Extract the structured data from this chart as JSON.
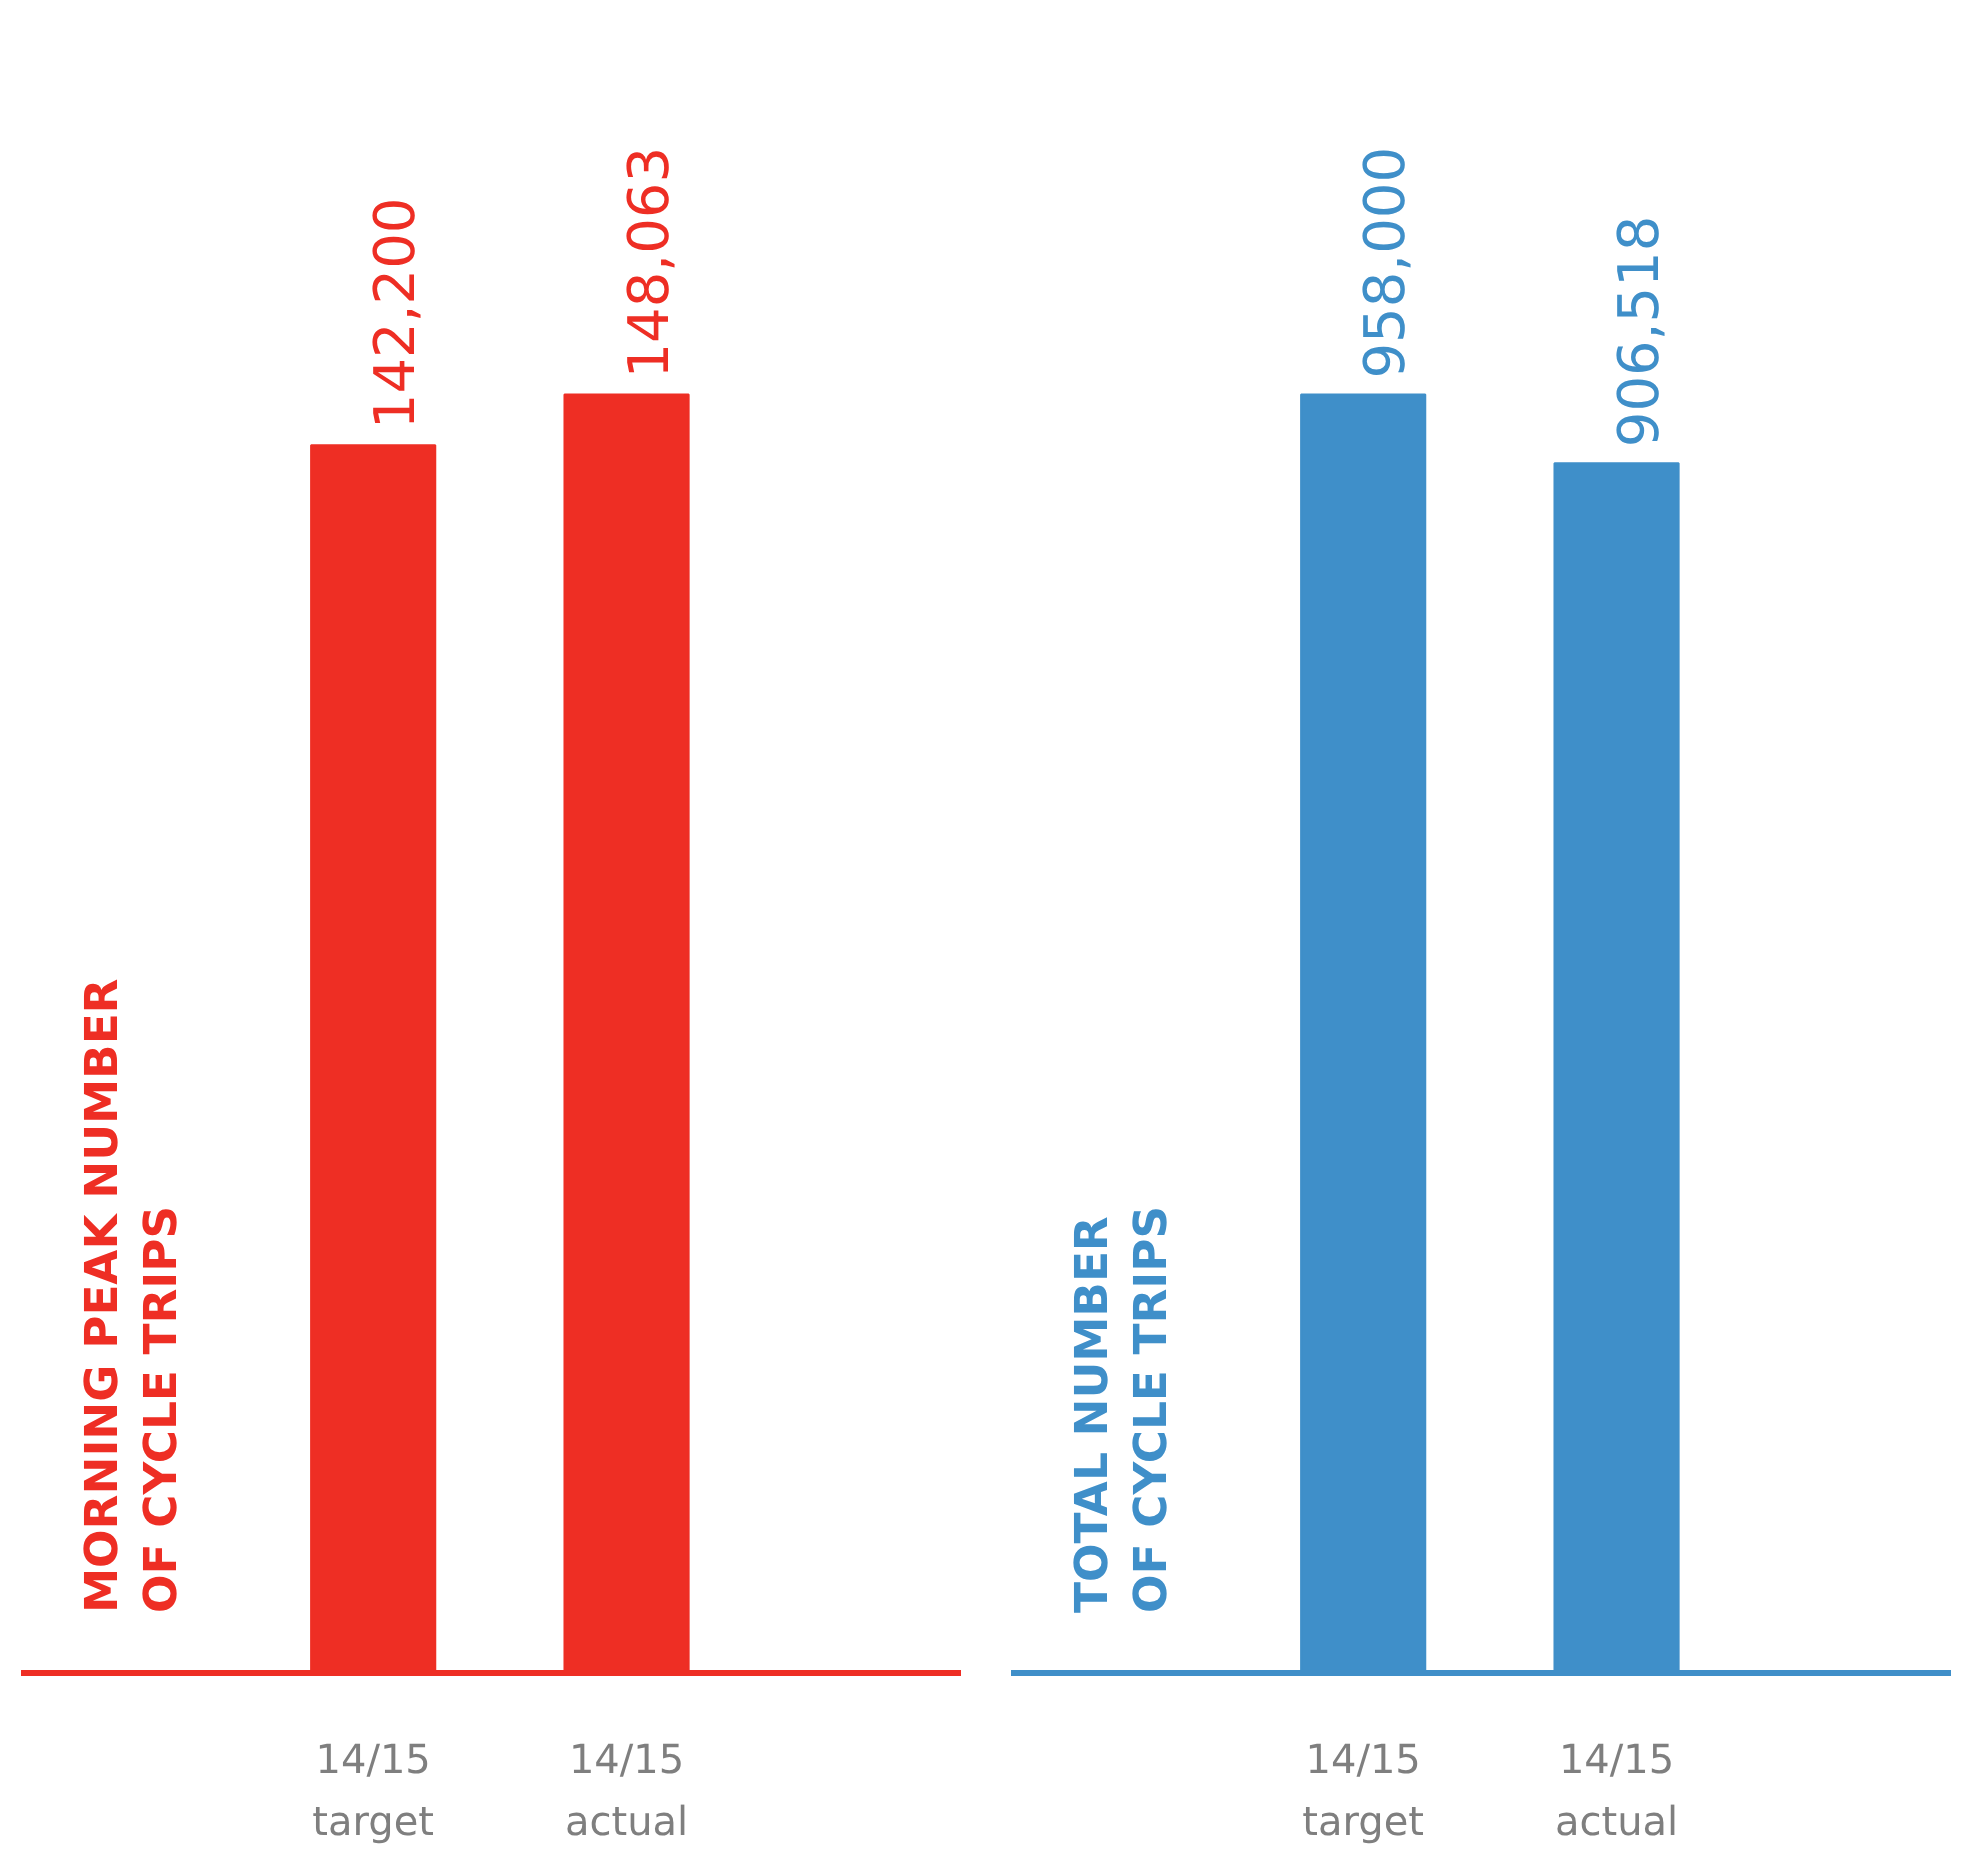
{
  "chart_data": [
    {
      "type": "bar",
      "ylabel": "MORNING PEAK NUMBER\nOF CYCLE TRIPS",
      "categories": [
        "14/15\ntarget",
        "14/15\nactual"
      ],
      "values": [
        142200,
        148063
      ],
      "value_labels": [
        "142,200",
        "148,063"
      ],
      "color": "#ee2e24",
      "grid": false,
      "tick_labels": "x"
    },
    {
      "type": "bar",
      "ylabel": "TOTAL NUMBER\nOF CYCLE TRIPS",
      "categories": [
        "14/15\ntarget",
        "14/15\nactual"
      ],
      "values": [
        958000,
        906518
      ],
      "value_labels": [
        "958,000",
        "906,518"
      ],
      "color": "#3f8fc9",
      "grid": false,
      "tick_labels": "x"
    }
  ]
}
